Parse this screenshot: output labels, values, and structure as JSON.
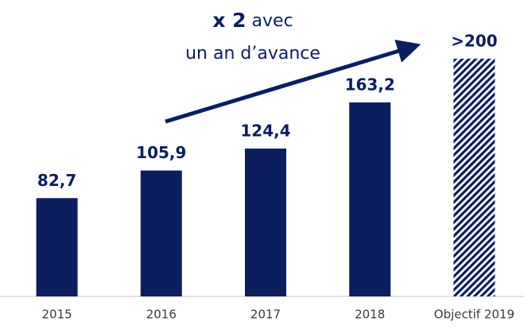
{
  "chart_data": {
    "type": "bar",
    "categories": [
      "2015",
      "2016",
      "2017",
      "2018",
      "Objectif 2019"
    ],
    "values": [
      82.7,
      105.9,
      124.4,
      163.2,
      200
    ],
    "value_labels": [
      "82,7",
      "105,9",
      "124,4",
      "163,2",
      ">200"
    ],
    "color": "#0b1f5e",
    "hatched": [
      false,
      false,
      false,
      false,
      true
    ],
    "ylim": [
      0,
      250
    ],
    "annotation": {
      "bold": "x 2",
      "rest": "avec",
      "line2": "un an d’avance"
    }
  }
}
